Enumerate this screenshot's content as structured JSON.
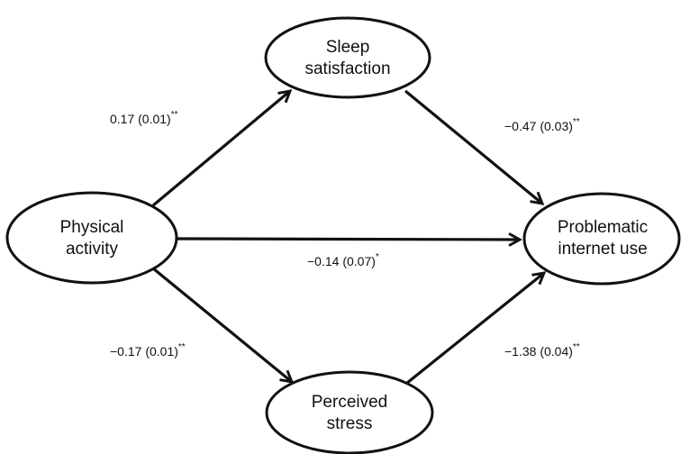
{
  "nodes": {
    "sleep": {
      "line1": "Sleep",
      "line2": "satisfaction"
    },
    "physical": {
      "line1": "Physical",
      "line2": "activity"
    },
    "problematic": {
      "line1": "Problematic",
      "line2": "internet use"
    },
    "stress": {
      "line1": "Perceived",
      "line2": "stress"
    }
  },
  "edges": {
    "physical_to_sleep": {
      "coef": "0.17 (0.01)",
      "sig": "**"
    },
    "sleep_to_problematic": {
      "coef": "−0.47 (0.03)",
      "sig": "**"
    },
    "physical_to_problematic": {
      "coef": "−0.14 (0.07)",
      "sig": "*"
    },
    "physical_to_stress": {
      "coef": "−0.17 (0.01)",
      "sig": "**"
    },
    "stress_to_problematic": {
      "coef": "−1.38 (0.04)",
      "sig": "**"
    }
  },
  "colors": {
    "stroke": "#111111",
    "background": "#ffffff"
  }
}
